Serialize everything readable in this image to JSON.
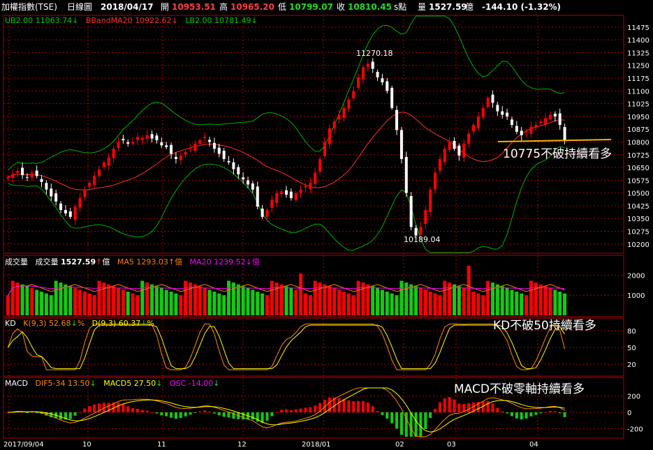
{
  "header": {
    "index_name": "加權指數(TSE)",
    "period": "日線圖",
    "date": "2018/04/17",
    "open_label": "開",
    "open": "10953.51",
    "high_label": "高",
    "high": "10965.20",
    "low_label": "低",
    "low": "10799.07",
    "close_label": "收",
    "close": "10810.45",
    "unit": "s點",
    "vol_label": "量",
    "volume": "1527.59",
    "vol_unit": "億",
    "change": "-144.10 (-1.32%)"
  },
  "price_panel": {
    "ub_label": "UB2.00",
    "ub_value": "11063.74",
    "mid_label": "BBandMA20",
    "mid_value": "10922.62",
    "lb_label": "LB2.00",
    "lb_value": "10781.49",
    "y_ticks": [
      "11475",
      "11400",
      "11325",
      "11250",
      "11175",
      "11100",
      "11025",
      "10950",
      "10875",
      "10800",
      "10725",
      "10650",
      "10575",
      "10500",
      "10425",
      "10350",
      "10275",
      "10200"
    ],
    "high_annotation": "11270.18",
    "low_annotation": "10189.04",
    "note": "10775不破持續看多"
  },
  "volume_panel": {
    "title": "成交量",
    "vol_label": "成交量",
    "vol_value": "1527.59",
    "vol_unit": "億",
    "ma5_label": "MA5",
    "ma5_value": "1293.03",
    "ma5_unit": "億",
    "ma20_label": "MA20",
    "ma20_value": "1239.52",
    "ma20_unit": "億",
    "y_ticks": [
      "2000",
      "1000"
    ]
  },
  "kd_panel": {
    "title": "KD",
    "k_label": "K(9,3)",
    "k_value": "52.68",
    "k_unit": "%",
    "d_label": "D(9,3)",
    "d_value": "60.37",
    "d_unit": "%",
    "y_ticks": [
      "80",
      "50",
      "20"
    ],
    "note": "KD不破50持續看多"
  },
  "macd_panel": {
    "title": "MACD",
    "dif_label": "DIF5-34",
    "dif_value": "13.50",
    "macd_label": "MACD5",
    "macd_value": "27.50",
    "osc_label": "OSC",
    "osc_value": "-14.00",
    "y_ticks": [
      "200",
      "0",
      "-200"
    ],
    "note": "MACD不破零軸持續看多"
  },
  "x_axis": [
    "2017/09/04",
    "10",
    "11",
    "12",
    "2018/01",
    "02",
    "03",
    "04"
  ],
  "colors": {
    "up": "#ff0000",
    "down": "#00cc00",
    "flat": "#ffffff",
    "grid": "#b00000",
    "mid": "#ff3030",
    "band": "#00b000",
    "ma5": "#ff7a00",
    "ma20": "#ff00ff",
    "k": "#ff8c00",
    "d": "#ffff00",
    "support": "#ffb000"
  },
  "chart_data": {
    "type": "candlestick",
    "x_range": [
      "2017/09/04",
      "2018/04/17"
    ],
    "price_ylim": [
      10150,
      11540
    ],
    "price_series": [
      10595,
      10612,
      10630,
      10605,
      10590,
      10620,
      10600,
      10565,
      10520,
      10480,
      10450,
      10400,
      10380,
      10360,
      10420,
      10470,
      10520,
      10560,
      10600,
      10640,
      10680,
      10710,
      10760,
      10800,
      10810,
      10790,
      10800,
      10830,
      10825,
      10840,
      10820,
      10810,
      10780,
      10770,
      10730,
      10700,
      10720,
      10740,
      10760,
      10790,
      10810,
      10830,
      10800,
      10760,
      10730,
      10700,
      10680,
      10640,
      10610,
      10580,
      10550,
      10520,
      10420,
      10360,
      10400,
      10460,
      10500,
      10510,
      10490,
      10470,
      10500,
      10520,
      10540,
      10560,
      10620,
      10700,
      10800,
      10880,
      10920,
      10960,
      11000,
      11050,
      11100,
      11180,
      11240,
      11260,
      11230,
      11180,
      11150,
      11100,
      11000,
      10870,
      10700,
      10500,
      10300,
      10250,
      10300,
      10400,
      10520,
      10620,
      10700,
      10760,
      10800,
      10760,
      10720,
      10790,
      10850,
      10900,
      10950,
      11000,
      11060,
      11030,
      10980,
      10960,
      10950,
      10900,
      10860,
      10840,
      10860,
      10890,
      10900,
      10920,
      10940,
      10960,
      10950,
      10900,
      10810
    ],
    "volume_ylim": [
      0,
      2500
    ],
    "kd_ylim": [
      0,
      100
    ],
    "macd_ylim": [
      -300,
      300
    ]
  }
}
